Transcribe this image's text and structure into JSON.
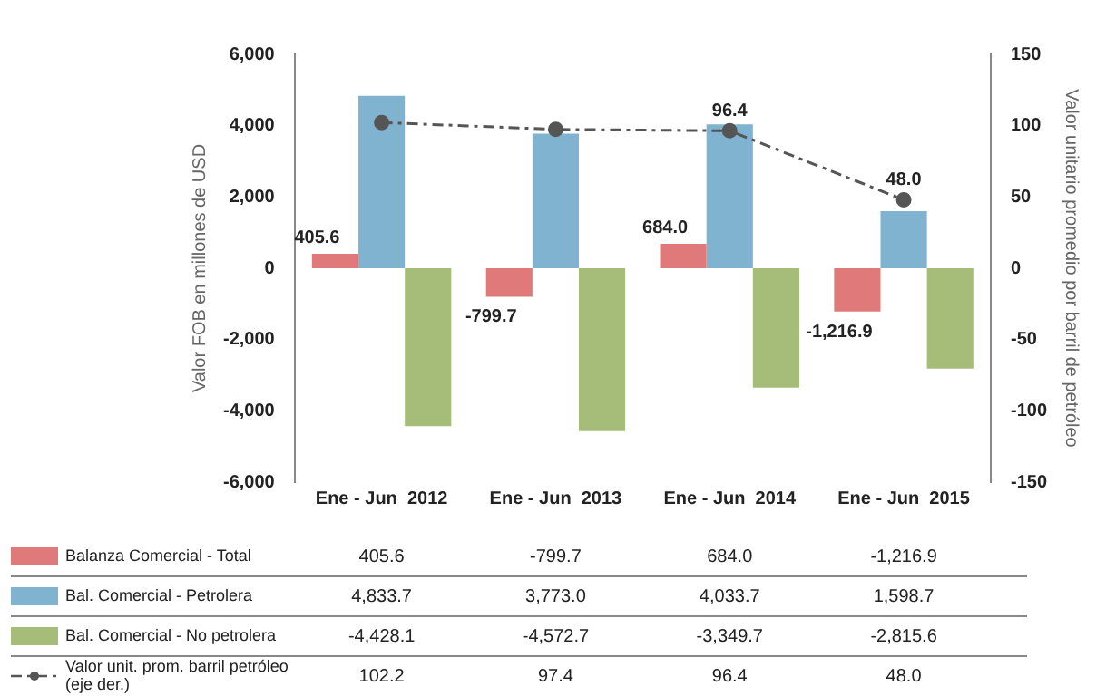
{
  "chart_data": {
    "type": "bar",
    "ylabel": "Valor FOB en millones de USD",
    "y2label": "Valor unitario promedio por barril de petróleo",
    "categories": [
      "Ene - Jun  2012",
      "Ene - Jun  2013",
      "Ene - Jun  2014",
      "Ene - Jun  2015"
    ],
    "series": [
      {
        "name": "Balanza Comercial - Total",
        "color": "#e07a7a",
        "values": [
          405.6,
          -799.7,
          684.0,
          -1216.9
        ],
        "value_labels": [
          "405.6",
          "-799.7",
          "684.0",
          "-1,216.9"
        ]
      },
      {
        "name": "Bal. Comercial - Petrolera",
        "color": "#7fb3cf",
        "values": [
          4833.7,
          3773.0,
          4033.7,
          1598.7
        ],
        "value_labels": [
          "4,833.7",
          "3,773.0",
          "4,033.7",
          "1,598.7"
        ]
      },
      {
        "name": "Bal. Comercial - No petrolera",
        "color": "#a5bd78",
        "values": [
          -4428.1,
          -4572.7,
          -3349.7,
          -2815.6
        ],
        "value_labels": [
          "-4,428.1",
          "-4,572.7",
          "-3,349.7",
          "-2,815.6"
        ]
      },
      {
        "name": "Valor unit. prom. barril petróleo (eje der.)",
        "type": "line",
        "axis": "y2",
        "color": "#555555",
        "line_style": "dashed",
        "marker": "circle",
        "values": [
          102.2,
          97.4,
          96.4,
          48.0
        ],
        "value_labels": [
          "102.2",
          "97.4",
          "96.4",
          "48.0"
        ]
      }
    ],
    "annotations": [
      "405.6",
      "-799.7",
      "684.0",
      "-1,216.9",
      "96.4",
      "48.0"
    ],
    "ylim": [
      -6000,
      6000
    ],
    "yticks": [
      {
        "value": -6000,
        "label": "-6,000"
      },
      {
        "value": -4000,
        "label": "-4,000"
      },
      {
        "value": -2000,
        "label": "-2,000"
      },
      0,
      {
        "value": 2000,
        "label": "2,000"
      },
      {
        "value": 4000,
        "label": "4,000"
      },
      {
        "value": 6000,
        "label": "6,000"
      }
    ],
    "y2lim": [
      -150,
      150
    ],
    "y2ticks": [
      -150,
      -100,
      -50,
      0,
      50,
      100,
      150
    ],
    "grid": false,
    "legend": "bottom"
  }
}
